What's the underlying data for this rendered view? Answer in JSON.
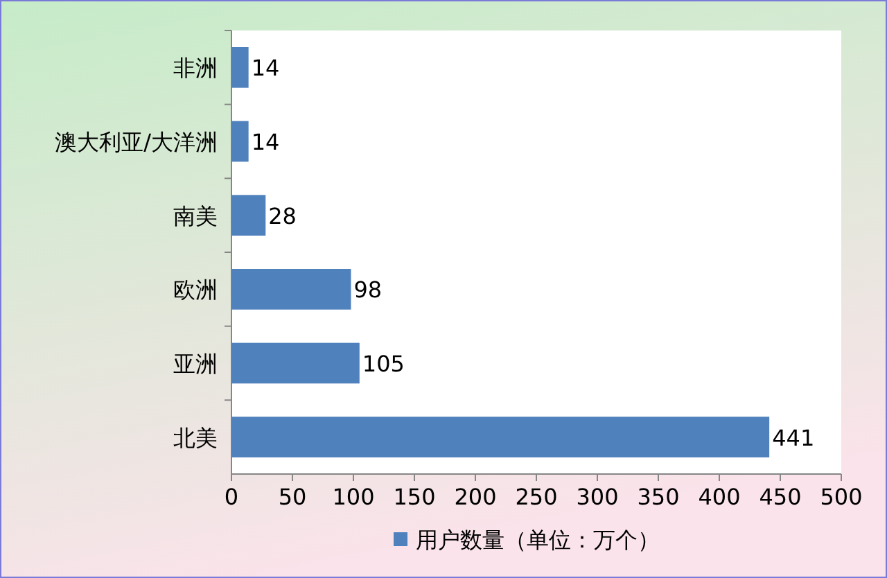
{
  "chart_data": {
    "type": "bar",
    "orientation": "horizontal",
    "categories": [
      "非洲",
      "澳大利亚/大洋洲",
      "南美",
      "欧洲",
      "亚洲",
      "北美"
    ],
    "series": [
      {
        "name": "用户数量（单位：万个）",
        "color": "#4f81bd",
        "values": [
          14,
          14,
          28,
          98,
          105,
          441
        ]
      }
    ],
    "xlim": [
      0,
      500
    ],
    "xticks": [
      0,
      50,
      100,
      150,
      200,
      250,
      300,
      350,
      400,
      450,
      500
    ],
    "data_labels": true,
    "grid": false,
    "legend": "bottom"
  }
}
